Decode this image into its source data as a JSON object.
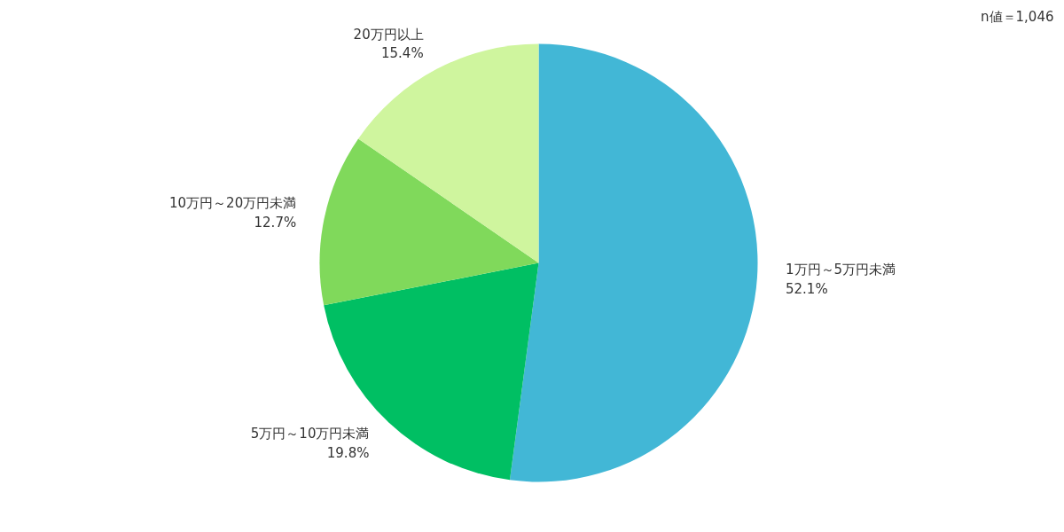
{
  "chart_data": {
    "type": "pie",
    "categories": [
      "1万円～5万円未満",
      "5万円～10万円未満",
      "10万円～20万円未満",
      "20万円以上"
    ],
    "values": [
      52.1,
      19.8,
      12.7,
      15.4
    ],
    "value_labels": [
      "52.1%",
      "19.8%",
      "12.7%",
      "15.4%"
    ],
    "colors": [
      "#42b7d6",
      "#00bf63",
      "#80d95b",
      "#cff59e"
    ],
    "annotations": [
      "n値＝1,046"
    ]
  }
}
